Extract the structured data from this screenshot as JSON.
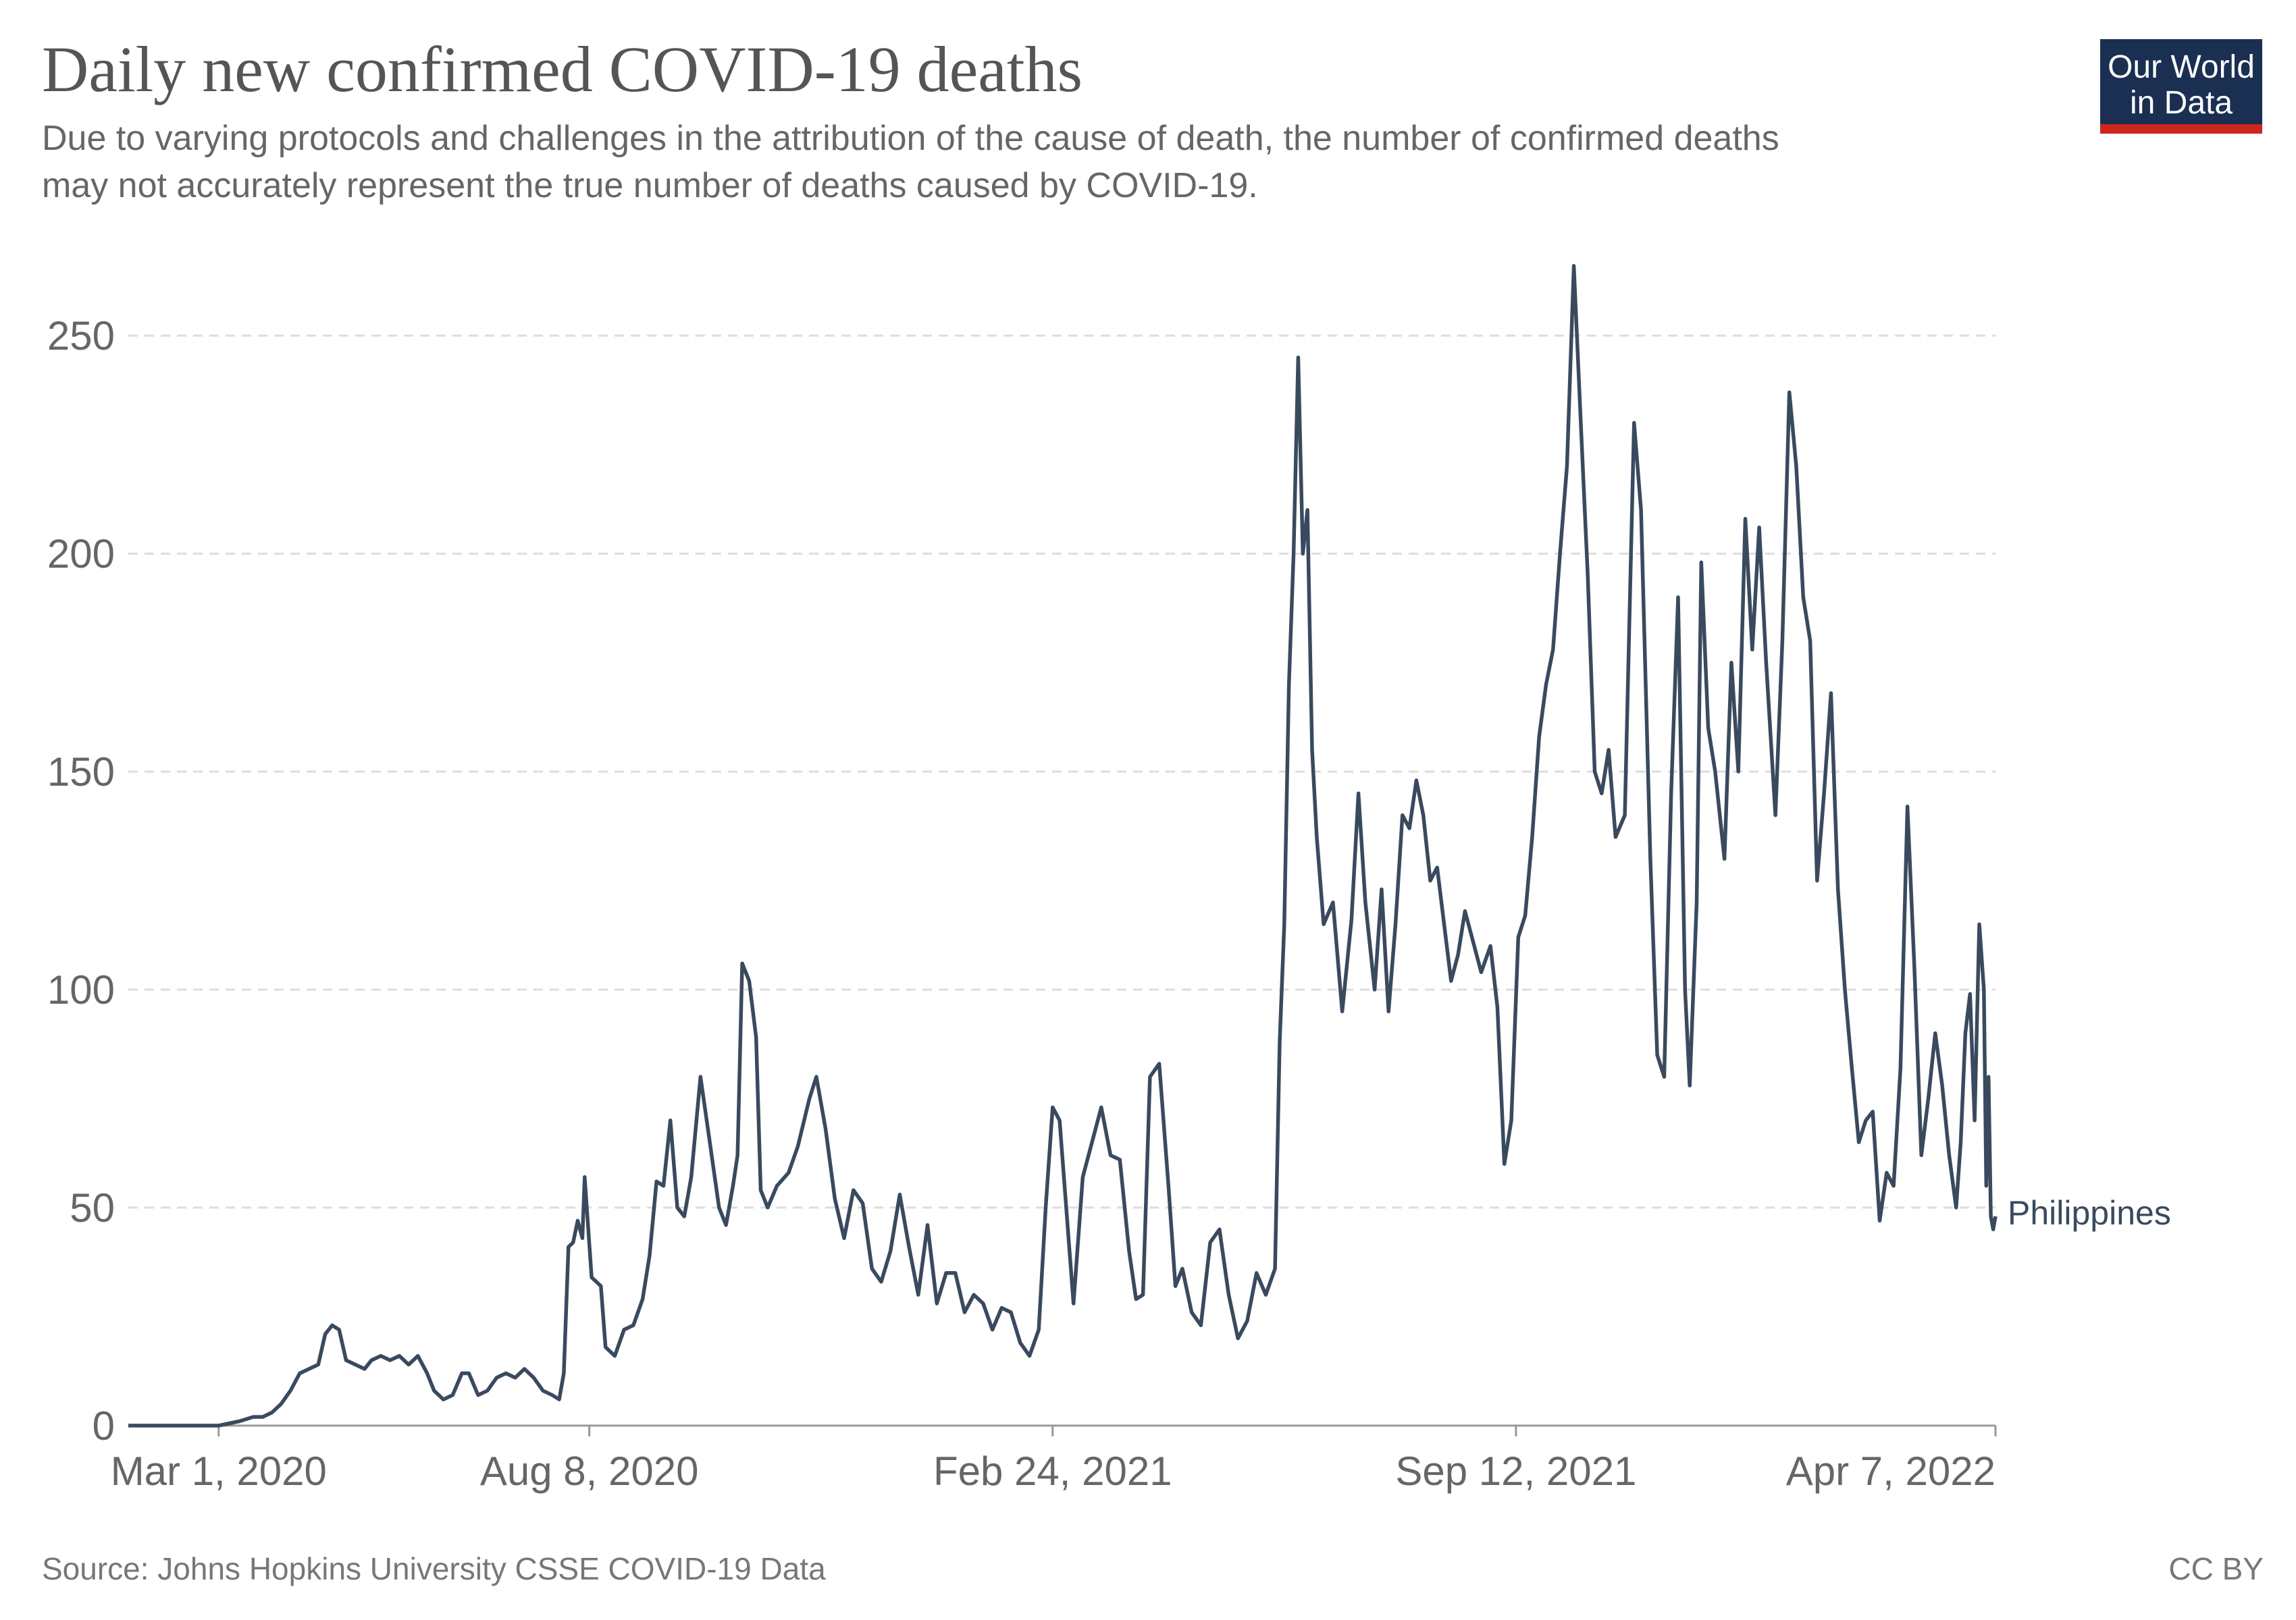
{
  "header": {
    "title": "Daily new confirmed COVID-19 deaths",
    "subtitle_lines": [
      "Due to varying protocols and challenges in the attribution of the cause of death, the number of confirmed deaths",
      "may not accurately represent the true number of deaths caused by COVID-19."
    ]
  },
  "logo": {
    "line1": "Our World",
    "line2": "in Data",
    "bg_color": "#1a2f52",
    "stripe_color": "#ce261e"
  },
  "footer": {
    "source": "Source: Johns Hopkins University CSSE COVID-19 Data",
    "license": "CC BY"
  },
  "colors": {
    "series": "#3a4a5e",
    "grid": "#dddddd",
    "axis": "#999999"
  },
  "chart_data": {
    "type": "line",
    "title": "Daily new confirmed COVID-19 deaths",
    "xlabel": "",
    "ylabel": "",
    "ylim": [
      0,
      270
    ],
    "xlim": [
      "2020-01-22",
      "2022-04-07"
    ],
    "y_ticks": [
      0,
      50,
      100,
      150,
      200,
      250
    ],
    "x_ticks": [
      {
        "date": "2020-03-01",
        "label": "Mar 1, 2020"
      },
      {
        "date": "2020-08-08",
        "label": "Aug 8, 2020"
      },
      {
        "date": "2021-02-24",
        "label": "Feb 24, 2021"
      },
      {
        "date": "2021-09-12",
        "label": "Sep 12, 2021"
      },
      {
        "date": "2022-04-07",
        "label": "Apr 7, 2022"
      }
    ],
    "grid": "horizontal-dashed",
    "legend": "inline-right",
    "series": [
      {
        "name": "Philippines",
        "points": [
          [
            "2020-01-22",
            0
          ],
          [
            "2020-02-10",
            0
          ],
          [
            "2020-03-01",
            0
          ],
          [
            "2020-03-10",
            1
          ],
          [
            "2020-03-16",
            2
          ],
          [
            "2020-03-20",
            2
          ],
          [
            "2020-03-24",
            3
          ],
          [
            "2020-03-28",
            5
          ],
          [
            "2020-04-01",
            8
          ],
          [
            "2020-04-05",
            12
          ],
          [
            "2020-04-09",
            13
          ],
          [
            "2020-04-13",
            14
          ],
          [
            "2020-04-16",
            21
          ],
          [
            "2020-04-19",
            23
          ],
          [
            "2020-04-22",
            22
          ],
          [
            "2020-04-25",
            15
          ],
          [
            "2020-04-29",
            14
          ],
          [
            "2020-05-03",
            13
          ],
          [
            "2020-05-06",
            15
          ],
          [
            "2020-05-10",
            16
          ],
          [
            "2020-05-14",
            15
          ],
          [
            "2020-05-18",
            16
          ],
          [
            "2020-05-22",
            14
          ],
          [
            "2020-05-26",
            16
          ],
          [
            "2020-05-30",
            12
          ],
          [
            "2020-06-02",
            8
          ],
          [
            "2020-06-06",
            6
          ],
          [
            "2020-06-10",
            7
          ],
          [
            "2020-06-14",
            12
          ],
          [
            "2020-06-17",
            12
          ],
          [
            "2020-06-21",
            7
          ],
          [
            "2020-06-25",
            8
          ],
          [
            "2020-06-29",
            11
          ],
          [
            "2020-07-03",
            12
          ],
          [
            "2020-07-07",
            11
          ],
          [
            "2020-07-11",
            13
          ],
          [
            "2020-07-15",
            11
          ],
          [
            "2020-07-19",
            8
          ],
          [
            "2020-07-23",
            7
          ],
          [
            "2020-07-26",
            6
          ],
          [
            "2020-07-28",
            12
          ],
          [
            "2020-07-30",
            41
          ],
          [
            "2020-08-01",
            42
          ],
          [
            "2020-08-03",
            47
          ],
          [
            "2020-08-05",
            43
          ],
          [
            "2020-08-06",
            57
          ],
          [
            "2020-08-09",
            34
          ],
          [
            "2020-08-13",
            32
          ],
          [
            "2020-08-15",
            18
          ],
          [
            "2020-08-19",
            16
          ],
          [
            "2020-08-23",
            22
          ],
          [
            "2020-08-27",
            23
          ],
          [
            "2020-08-31",
            29
          ],
          [
            "2020-09-03",
            39
          ],
          [
            "2020-09-06",
            56
          ],
          [
            "2020-09-09",
            55
          ],
          [
            "2020-09-12",
            70
          ],
          [
            "2020-09-15",
            50
          ],
          [
            "2020-09-18",
            48
          ],
          [
            "2020-09-21",
            57
          ],
          [
            "2020-09-25",
            80
          ],
          [
            "2020-09-29",
            65
          ],
          [
            "2020-10-03",
            50
          ],
          [
            "2020-10-06",
            46
          ],
          [
            "2020-10-09",
            55
          ],
          [
            "2020-10-11",
            62
          ],
          [
            "2020-10-13",
            106
          ],
          [
            "2020-10-16",
            102
          ],
          [
            "2020-10-19",
            89
          ],
          [
            "2020-10-21",
            54
          ],
          [
            "2020-10-24",
            50
          ],
          [
            "2020-10-28",
            55
          ],
          [
            "2020-11-02",
            58
          ],
          [
            "2020-11-06",
            64
          ],
          [
            "2020-11-11",
            75
          ],
          [
            "2020-11-14",
            80
          ],
          [
            "2020-11-18",
            68
          ],
          [
            "2020-11-22",
            52
          ],
          [
            "2020-11-26",
            43
          ],
          [
            "2020-11-30",
            54
          ],
          [
            "2020-12-04",
            51
          ],
          [
            "2020-12-08",
            36
          ],
          [
            "2020-12-12",
            33
          ],
          [
            "2020-12-16",
            40
          ],
          [
            "2020-12-20",
            53
          ],
          [
            "2020-12-24",
            41
          ],
          [
            "2020-12-28",
            30
          ],
          [
            "2021-01-01",
            46
          ],
          [
            "2021-01-05",
            28
          ],
          [
            "2021-01-09",
            35
          ],
          [
            "2021-01-13",
            35
          ],
          [
            "2021-01-17",
            26
          ],
          [
            "2021-01-21",
            30
          ],
          [
            "2021-01-25",
            28
          ],
          [
            "2021-01-29",
            22
          ],
          [
            "2021-02-02",
            27
          ],
          [
            "2021-02-06",
            26
          ],
          [
            "2021-02-10",
            19
          ],
          [
            "2021-02-14",
            16
          ],
          [
            "2021-02-18",
            22
          ],
          [
            "2021-02-21",
            50
          ],
          [
            "2021-02-24",
            73
          ],
          [
            "2021-02-27",
            70
          ],
          [
            "2021-03-02",
            49
          ],
          [
            "2021-03-05",
            28
          ],
          [
            "2021-03-09",
            57
          ],
          [
            "2021-03-13",
            65
          ],
          [
            "2021-03-17",
            73
          ],
          [
            "2021-03-21",
            62
          ],
          [
            "2021-03-25",
            61
          ],
          [
            "2021-03-29",
            40
          ],
          [
            "2021-04-01",
            29
          ],
          [
            "2021-04-04",
            30
          ],
          [
            "2021-04-07",
            80
          ],
          [
            "2021-04-11",
            83
          ],
          [
            "2021-04-15",
            55
          ],
          [
            "2021-04-18",
            32
          ],
          [
            "2021-04-21",
            36
          ],
          [
            "2021-04-25",
            26
          ],
          [
            "2021-04-29",
            23
          ],
          [
            "2021-05-03",
            42
          ],
          [
            "2021-05-07",
            45
          ],
          [
            "2021-05-11",
            30
          ],
          [
            "2021-05-15",
            20
          ],
          [
            "2021-05-19",
            24
          ],
          [
            "2021-05-23",
            35
          ],
          [
            "2021-05-27",
            30
          ],
          [
            "2021-05-31",
            36
          ],
          [
            "2021-06-02",
            88
          ],
          [
            "2021-06-04",
            115
          ],
          [
            "2021-06-06",
            170
          ],
          [
            "2021-06-08",
            200
          ],
          [
            "2021-06-10",
            245
          ],
          [
            "2021-06-12",
            200
          ],
          [
            "2021-06-14",
            210
          ],
          [
            "2021-06-16",
            155
          ],
          [
            "2021-06-18",
            135
          ],
          [
            "2021-06-21",
            115
          ],
          [
            "2021-06-25",
            120
          ],
          [
            "2021-06-29",
            95
          ],
          [
            "2021-07-03",
            116
          ],
          [
            "2021-07-06",
            145
          ],
          [
            "2021-07-09",
            120
          ],
          [
            "2021-07-13",
            100
          ],
          [
            "2021-07-16",
            123
          ],
          [
            "2021-07-19",
            95
          ],
          [
            "2021-07-22",
            115
          ],
          [
            "2021-07-25",
            140
          ],
          [
            "2021-07-28",
            137
          ],
          [
            "2021-07-31",
            148
          ],
          [
            "2021-08-03",
            140
          ],
          [
            "2021-08-06",
            125
          ],
          [
            "2021-08-09",
            128
          ],
          [
            "2021-08-12",
            115
          ],
          [
            "2021-08-15",
            102
          ],
          [
            "2021-08-18",
            108
          ],
          [
            "2021-08-21",
            118
          ],
          [
            "2021-08-24",
            112
          ],
          [
            "2021-08-28",
            104
          ],
          [
            "2021-09-01",
            110
          ],
          [
            "2021-09-04",
            96
          ],
          [
            "2021-09-07",
            60
          ],
          [
            "2021-09-10",
            70
          ],
          [
            "2021-09-13",
            112
          ],
          [
            "2021-09-16",
            117
          ],
          [
            "2021-09-19",
            135
          ],
          [
            "2021-09-22",
            158
          ],
          [
            "2021-09-25",
            170
          ],
          [
            "2021-09-28",
            178
          ],
          [
            "2021-10-01",
            200
          ],
          [
            "2021-10-04",
            220
          ],
          [
            "2021-10-07",
            266
          ],
          [
            "2021-10-10",
            230
          ],
          [
            "2021-10-13",
            195
          ],
          [
            "2021-10-16",
            150
          ],
          [
            "2021-10-19",
            145
          ],
          [
            "2021-10-22",
            155
          ],
          [
            "2021-10-25",
            135
          ],
          [
            "2021-10-29",
            140
          ],
          [
            "2021-11-02",
            230
          ],
          [
            "2021-11-05",
            210
          ],
          [
            "2021-11-09",
            130
          ],
          [
            "2021-11-12",
            85
          ],
          [
            "2021-11-15",
            80
          ],
          [
            "2021-11-18",
            145
          ],
          [
            "2021-11-21",
            190
          ],
          [
            "2021-11-24",
            100
          ],
          [
            "2021-11-26",
            78
          ],
          [
            "2021-11-29",
            120
          ],
          [
            "2021-12-01",
            198
          ],
          [
            "2021-12-04",
            160
          ],
          [
            "2021-12-07",
            150
          ],
          [
            "2021-12-11",
            130
          ],
          [
            "2021-12-14",
            175
          ],
          [
            "2021-12-17",
            150
          ],
          [
            "2021-12-20",
            208
          ],
          [
            "2021-12-23",
            178
          ],
          [
            "2021-12-26",
            206
          ],
          [
            "2021-12-29",
            175
          ],
          [
            "2022-01-02",
            140
          ],
          [
            "2022-01-05",
            180
          ],
          [
            "2022-01-08",
            237
          ],
          [
            "2022-01-11",
            220
          ],
          [
            "2022-01-14",
            190
          ],
          [
            "2022-01-17",
            180
          ],
          [
            "2022-01-20",
            125
          ],
          [
            "2022-01-23",
            145
          ],
          [
            "2022-01-26",
            168
          ],
          [
            "2022-01-29",
            123
          ],
          [
            "2022-02-01",
            100
          ],
          [
            "2022-02-04",
            82
          ],
          [
            "2022-02-07",
            65
          ],
          [
            "2022-02-10",
            70
          ],
          [
            "2022-02-13",
            72
          ],
          [
            "2022-02-16",
            47
          ],
          [
            "2022-02-19",
            58
          ],
          [
            "2022-02-22",
            55
          ],
          [
            "2022-02-25",
            82
          ],
          [
            "2022-02-28",
            142
          ],
          [
            "2022-03-03",
            105
          ],
          [
            "2022-03-06",
            62
          ],
          [
            "2022-03-09",
            75
          ],
          [
            "2022-03-12",
            90
          ],
          [
            "2022-03-15",
            78
          ],
          [
            "2022-03-18",
            62
          ],
          [
            "2022-03-21",
            50
          ],
          [
            "2022-03-23",
            65
          ],
          [
            "2022-03-25",
            90
          ],
          [
            "2022-03-27",
            99
          ],
          [
            "2022-03-29",
            70
          ],
          [
            "2022-03-31",
            115
          ],
          [
            "2022-04-02",
            100
          ],
          [
            "2022-04-03",
            55
          ],
          [
            "2022-04-04",
            80
          ],
          [
            "2022-04-05",
            48
          ],
          [
            "2022-04-06",
            45
          ],
          [
            "2022-04-07",
            48
          ]
        ]
      }
    ]
  }
}
